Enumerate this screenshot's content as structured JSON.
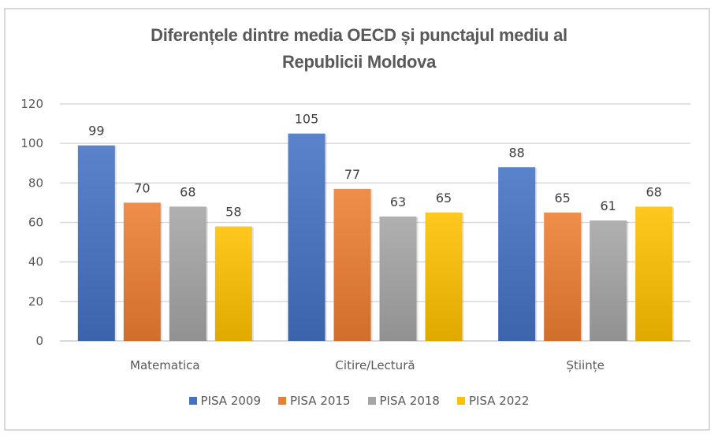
{
  "chart_data": {
    "type": "bar",
    "title": "Diferențele dintre media OECD și punctajul mediu al Republicii Moldova",
    "title_lines": [
      "Diferențele dintre media OECD și punctajul mediu al",
      "Republicii Moldova"
    ],
    "categories": [
      "Matematica",
      "Citire/Lectură",
      "Științe"
    ],
    "series": [
      {
        "name": "PISA 2009",
        "values": [
          99,
          105,
          88
        ],
        "color": "#4472c4"
      },
      {
        "name": "PISA 2015",
        "values": [
          70,
          77,
          65
        ],
        "color": "#ed7d31"
      },
      {
        "name": "PISA 2018",
        "values": [
          68,
          63,
          61
        ],
        "color": "#a5a5a5"
      },
      {
        "name": "PISA 2022",
        "values": [
          58,
          65,
          68
        ],
        "color": "#ffc000"
      }
    ],
    "xlabel": "",
    "ylabel": "",
    "ylim": [
      0,
      120
    ],
    "yticks": [
      0,
      20,
      40,
      60,
      80,
      100,
      120
    ],
    "grid": true,
    "data_labels": true,
    "legend_position": "bottom"
  }
}
